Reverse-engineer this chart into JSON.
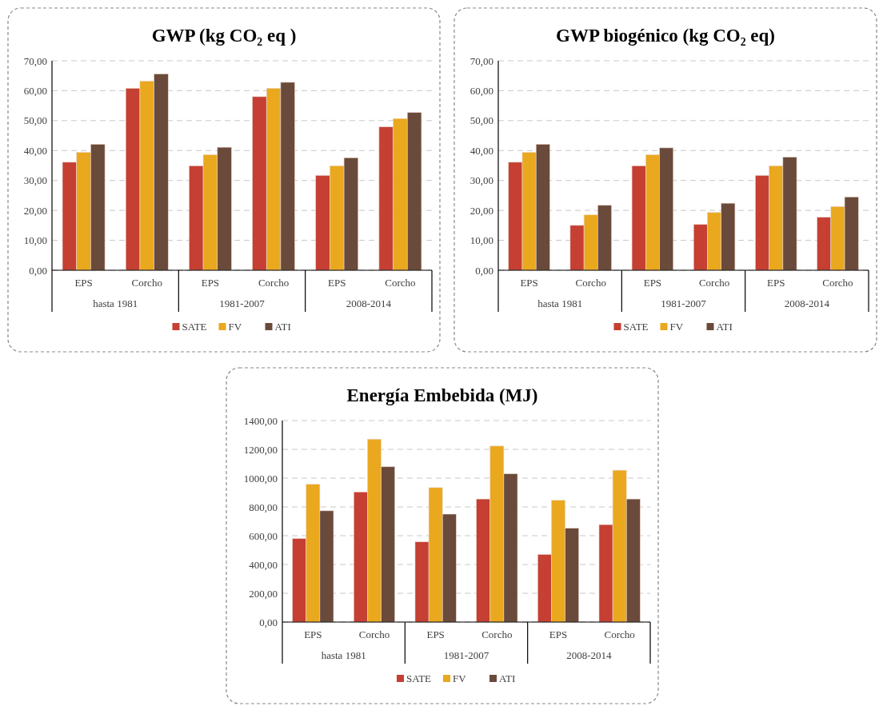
{
  "chart_data": [
    {
      "type": "bar",
      "title": "GWP (kg CO₂ eq )",
      "categories": [
        "EPS",
        "Corcho",
        "EPS",
        "Corcho",
        "EPS",
        "Corcho"
      ],
      "series": [
        {
          "name": "SATE",
          "color": "#c53f32",
          "values": [
            36.1,
            60.8,
            34.9,
            58.0,
            31.7,
            47.9
          ]
        },
        {
          "name": "FV",
          "color": "#eaa81f",
          "values": [
            39.4,
            63.2,
            38.6,
            60.8,
            34.9,
            50.7
          ]
        },
        {
          "name": "ATI",
          "color": "#6a4a3a",
          "values": [
            42.1,
            65.6,
            41.1,
            62.8,
            37.6,
            52.7
          ]
        }
      ],
      "annotations": [
        "hasta 1981",
        "1981-2007",
        "2008-2014"
      ],
      "ylim": [
        0,
        70
      ],
      "yticks": [
        {
          "value": 0,
          "label": "0,00"
        },
        {
          "value": 10,
          "label": "10,00"
        },
        {
          "value": 20,
          "label": "20,00"
        },
        {
          "value": 30,
          "label": "30,00"
        },
        {
          "value": 40,
          "label": "40,00"
        },
        {
          "value": 50,
          "label": "50,00"
        },
        {
          "value": 60,
          "label": "60,00"
        },
        {
          "value": 70,
          "label": "70,00"
        }
      ],
      "grid": "y",
      "legend": "bottom"
    },
    {
      "type": "bar",
      "title": "GWP biogénico (kg CO₂ eq)",
      "categories": [
        "EPS",
        "Corcho",
        "EPS",
        "Corcho",
        "EPS",
        "Corcho"
      ],
      "series": [
        {
          "name": "SATE",
          "color": "#c53f32",
          "values": [
            36.1,
            15.0,
            34.9,
            15.3,
            31.7,
            17.7
          ]
        },
        {
          "name": "FV",
          "color": "#eaa81f",
          "values": [
            39.4,
            18.5,
            38.6,
            19.3,
            34.9,
            21.3
          ]
        },
        {
          "name": "ATI",
          "color": "#6a4a3a",
          "values": [
            42.1,
            21.7,
            40.9,
            22.4,
            37.8,
            24.5
          ]
        }
      ],
      "annotations": [
        "hasta 1981",
        "1981-2007",
        "2008-2014"
      ],
      "ylim": [
        0,
        70
      ],
      "yticks": [
        {
          "value": 0,
          "label": "0,00"
        },
        {
          "value": 10,
          "label": "10,00"
        },
        {
          "value": 20,
          "label": "20,00"
        },
        {
          "value": 30,
          "label": "30,00"
        },
        {
          "value": 40,
          "label": "40,00"
        },
        {
          "value": 50,
          "label": "50,00"
        },
        {
          "value": 60,
          "label": "60,00"
        },
        {
          "value": 70,
          "label": "70,00"
        }
      ],
      "grid": "y",
      "legend": "bottom"
    },
    {
      "type": "bar",
      "title": "Energía Embebida (MJ)",
      "categories": [
        "EPS",
        "Corcho",
        "EPS",
        "Corcho",
        "EPS",
        "Corcho"
      ],
      "series": [
        {
          "name": "SATE",
          "color": "#c53f32",
          "values": [
            580,
            904,
            557,
            855,
            470,
            677
          ]
        },
        {
          "name": "FV",
          "color": "#eaa81f",
          "values": [
            957,
            1271,
            934,
            1223,
            846,
            1055
          ]
        },
        {
          "name": "ATI",
          "color": "#6a4a3a",
          "values": [
            773,
            1079,
            750,
            1030,
            652,
            855
          ]
        }
      ],
      "annotations": [
        "hasta 1981",
        "1981-2007",
        "2008-2014"
      ],
      "ylim": [
        0,
        1400
      ],
      "yticks": [
        {
          "value": 0,
          "label": "0,00"
        },
        {
          "value": 200,
          "label": "200,00"
        },
        {
          "value": 400,
          "label": "400,00"
        },
        {
          "value": 600,
          "label": "600,00"
        },
        {
          "value": 800,
          "label": "800,00"
        },
        {
          "value": 1000,
          "label": "1000,00"
        },
        {
          "value": 1200,
          "label": "1200,00"
        },
        {
          "value": 1400,
          "label": "1400,00"
        }
      ],
      "grid": "y",
      "legend": "bottom"
    }
  ]
}
